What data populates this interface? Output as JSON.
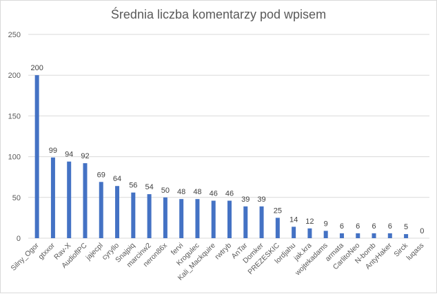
{
  "chart_data": {
    "type": "bar",
    "title": "Średnia liczba komentarzy pod wpisem",
    "xlabel": "",
    "ylabel": "",
    "ylim": [
      0,
      250
    ],
    "yticks": [
      "0",
      "50",
      "100",
      "150",
      "200",
      "250"
    ],
    "grid": true,
    "legend": "none",
    "categories": [
      "Silny_Ogor",
      "gtxxor",
      "Rav-X",
      "AudioflPC",
      "jajecpl",
      "cyryllo",
      "Snajpiq",
      "marcinw2",
      "neron86x",
      "fervi",
      "Krogulec",
      "Kali_Mackquire",
      "rwtryb",
      "AnTar",
      "Domker",
      "PREZESKIC",
      "lordjahu",
      "jak.kra",
      "wojtekadams",
      "armata",
      "CarlitoNeo",
      "N-bomb",
      "AntyHaker",
      "Sirck",
      "luqass"
    ],
    "values": [
      200,
      99,
      94,
      92,
      69,
      64,
      56,
      54,
      50,
      48,
      48,
      46,
      46,
      39,
      39,
      25,
      14,
      12,
      9,
      6,
      6,
      6,
      6,
      5,
      0
    ],
    "colors": {
      "bar": "#4472c4",
      "grid": "#d9d9d9",
      "text": "#595959",
      "label": "#404040",
      "title": "#595959"
    }
  }
}
